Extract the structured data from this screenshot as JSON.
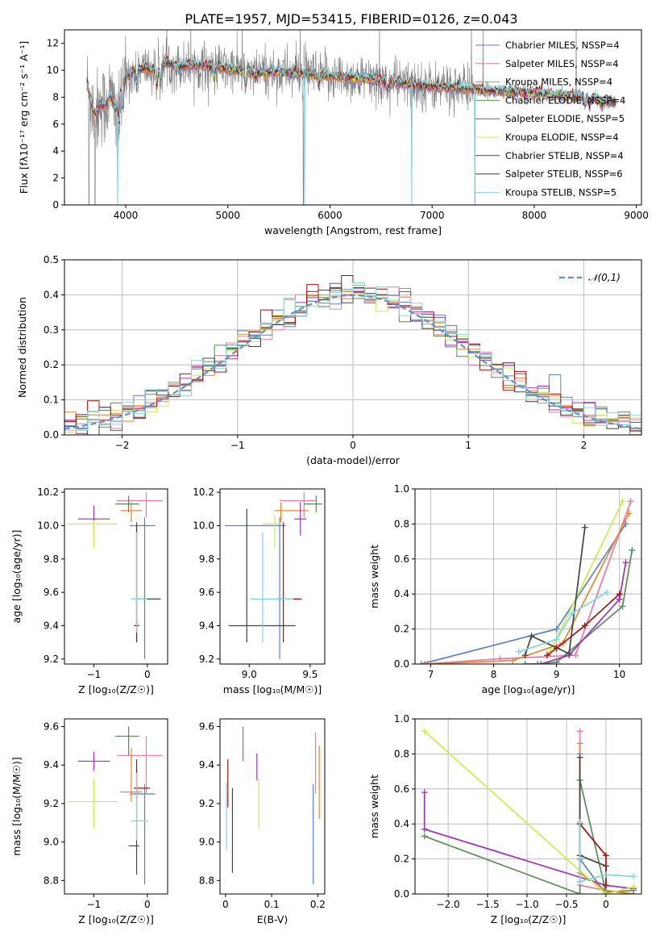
{
  "figure_title": "PLATE=1957, MJD=53415, FIBERID=0126, z=0.043",
  "colors": {
    "Chabrier MILES": "#5b7fd1",
    "Salpeter MILES": "#e87aa6",
    "Kroupa MILES": "#e8862e",
    "Chabrier ELODIE": "#5a8a5a",
    "Salpeter ELODIE": "#a032b8",
    "Kroupa ELODIE": "#d4e84a",
    "Chabrier STELIB": "#444444",
    "Salpeter STELIB": "#aa1111",
    "Kroupa STELIB": "#7fd8de",
    "data": "#808080"
  },
  "chart_data": [
    {
      "id": "spectrum",
      "type": "line",
      "title": "",
      "xlabel": "wavelength [Angstrom, rest frame]",
      "ylabel": "Flux [fλ10⁻¹⁷ erg cm⁻² s⁻¹ A⁻¹]",
      "xlim": [
        3400,
        9050
      ],
      "ylim": [
        0,
        13
      ],
      "xticks": [
        4000,
        5000,
        6000,
        7000,
        8000,
        9000
      ],
      "yticks": [
        0,
        2,
        4,
        6,
        8,
        10,
        12
      ],
      "legend_position": "right",
      "legend": [
        {
          "name": "Chabrier MILES",
          "label": "Chabrier MILES, NSSP=4"
        },
        {
          "name": "Salpeter MILES",
          "label": "Salpeter MILES, NSSP=4"
        },
        {
          "name": "Kroupa MILES",
          "label": "Kroupa MILES, NSSP=4"
        },
        {
          "name": "Chabrier ELODIE",
          "label": "Chabrier ELODIE, NSSP=4"
        },
        {
          "name": "Salpeter ELODIE",
          "label": "Salpeter ELODIE, NSSP=5"
        },
        {
          "name": "Kroupa ELODIE",
          "label": "Kroupa ELODIE, NSSP=4"
        },
        {
          "name": "Chabrier STELIB",
          "label": "Chabrier STELIB, NSSP=4"
        },
        {
          "name": "Salpeter STELIB",
          "label": "Salpeter STELIB, NSSP=6"
        },
        {
          "name": "Kroupa STELIB",
          "label": "Kroupa STELIB, NSSP=5"
        }
      ],
      "continuum": [
        [
          3620,
          9.0
        ],
        [
          3700,
          6.5
        ],
        [
          3750,
          7.6
        ],
        [
          3800,
          7.3
        ],
        [
          3850,
          8.2
        ],
        [
          3900,
          7.0
        ],
        [
          3950,
          8.8
        ],
        [
          4000,
          9.5
        ],
        [
          4100,
          10.0
        ],
        [
          4200,
          10.2
        ],
        [
          4300,
          9.9
        ],
        [
          4400,
          10.6
        ],
        [
          4500,
          10.3
        ],
        [
          4700,
          10.4
        ],
        [
          4900,
          10.2
        ],
        [
          5100,
          10.0
        ],
        [
          5300,
          9.8
        ],
        [
          5500,
          9.9
        ],
        [
          5800,
          9.7
        ],
        [
          6100,
          9.5
        ],
        [
          6400,
          9.3
        ],
        [
          6700,
          9.0
        ],
        [
          7000,
          8.8
        ],
        [
          7400,
          8.6
        ],
        [
          7500,
          8.5
        ],
        [
          7800,
          8.4
        ],
        [
          8200,
          8.2
        ],
        [
          8600,
          7.9
        ],
        [
          8800,
          7.6
        ]
      ],
      "data_dropouts": [
        3640,
        3700,
        3920,
        5740,
        6800,
        7420
      ],
      "model_dropouts": [
        3920,
        5750,
        6800,
        7420
      ]
    },
    {
      "id": "residuals",
      "type": "histogram",
      "xlabel": "(data-model)/error",
      "ylabel": "Normed distribution",
      "xlim": [
        -2.5,
        2.5
      ],
      "ylim": [
        0,
        0.5
      ],
      "xticks": [
        -2,
        -1,
        0,
        1,
        2
      ],
      "yticks": [
        0.0,
        0.1,
        0.2,
        0.3,
        0.4,
        0.5
      ],
      "grid": true,
      "legend_position": "top-right",
      "reference_label": "𝒩(0,1)",
      "bin_width": 0.1
    },
    {
      "id": "age_vs_Z",
      "type": "errorbar",
      "xlabel": "Z [log₁₀(Z/Z☉)]",
      "ylabel": "age  [log₁₀(age/yr)]",
      "xlim": [
        -1.55,
        0.38
      ],
      "ylim": [
        9.17,
        10.22
      ],
      "xticks": [
        -1,
        0
      ],
      "yticks": [
        9.2,
        9.4,
        9.6,
        9.8,
        10.0,
        10.2
      ],
      "points": [
        {
          "name": "Chabrier MILES",
          "x": -0.05,
          "y": 10.0,
          "xerr": [
            0.28,
            0.2
          ],
          "yerr": [
            0.8,
            0.05
          ]
        },
        {
          "name": "Salpeter MILES",
          "x": -0.02,
          "y": 10.15,
          "xerr": [
            0.55,
            0.3
          ],
          "yerr": [
            0.1,
            0.05
          ]
        },
        {
          "name": "Kroupa MILES",
          "x": -0.3,
          "y": 10.09,
          "xerr": [
            0.2,
            0.2
          ],
          "yerr": [
            0.07,
            0.05
          ]
        },
        {
          "name": "Chabrier ELODIE",
          "x": -0.35,
          "y": 10.13,
          "xerr": [
            0.25,
            0.2
          ],
          "yerr": [
            0.05,
            0.05
          ]
        },
        {
          "name": "Salpeter ELODIE",
          "x": -1.0,
          "y": 10.04,
          "xerr": [
            0.3,
            0.3
          ],
          "yerr": [
            0.1,
            0.08
          ]
        },
        {
          "name": "Kroupa ELODIE",
          "x": -1.0,
          "y": 10.01,
          "xerr": [
            0.5,
            0.45
          ],
          "yerr": [
            0.15,
            0.02
          ]
        },
        {
          "name": "Chabrier STELIB",
          "x": -0.2,
          "y": 9.56,
          "xerr": [
            0.05,
            0.45
          ],
          "yerr": [
            0.26,
            0.46
          ]
        },
        {
          "name": "Salpeter STELIB",
          "x": -0.2,
          "y": 9.4,
          "xerr": [
            0.05,
            0.05
          ],
          "yerr": [
            0.1,
            0.6
          ]
        },
        {
          "name": "Kroupa STELIB",
          "x": -0.2,
          "y": 9.56,
          "xerr": [
            0.1,
            0.2
          ],
          "yerr": [
            0.2,
            0.4
          ]
        }
      ]
    },
    {
      "id": "age_vs_mass",
      "type": "errorbar",
      "xlabel": "mass [log₁₀(M/M☉)]",
      "ylabel": "",
      "xlim": [
        8.76,
        9.62
      ],
      "ylim": [
        9.17,
        10.22
      ],
      "xticks": [
        9.0,
        9.5
      ],
      "yticks": [
        9.2,
        9.4,
        9.6,
        9.8,
        10.0,
        10.2
      ],
      "points": [
        {
          "name": "Chabrier MILES",
          "x": 9.25,
          "y": 10.0,
          "xerr": [
            0.45,
            0.05
          ],
          "yerr": [
            0.8,
            0.05
          ]
        },
        {
          "name": "Salpeter MILES",
          "x": 9.45,
          "y": 10.15,
          "xerr": [
            0.2,
            0.1
          ],
          "yerr": [
            0.1,
            0.05
          ]
        },
        {
          "name": "Kroupa MILES",
          "x": 9.26,
          "y": 10.09,
          "xerr": [
            0.05,
            0.23
          ],
          "yerr": [
            0.07,
            0.05
          ]
        },
        {
          "name": "Chabrier ELODIE",
          "x": 9.55,
          "y": 10.13,
          "xerr": [
            0.1,
            0.05
          ],
          "yerr": [
            0.05,
            0.05
          ]
        },
        {
          "name": "Salpeter ELODIE",
          "x": 9.42,
          "y": 10.04,
          "xerr": [
            0.05,
            0.05
          ],
          "yerr": [
            0.1,
            0.1
          ]
        },
        {
          "name": "Kroupa ELODIE",
          "x": 9.21,
          "y": 10.01,
          "xerr": [
            0.1,
            0.05
          ],
          "yerr": [
            0.15,
            0.05
          ]
        },
        {
          "name": "Chabrier STELIB",
          "x": 8.98,
          "y": 9.4,
          "xerr": [
            0.15,
            0.4
          ],
          "yerr": [
            0.1,
            0.7
          ]
        },
        {
          "name": "Salpeter STELIB",
          "x": 9.28,
          "y": 9.56,
          "xerr": [
            0.05,
            0.15
          ],
          "yerr": [
            0.26,
            0.46
          ]
        },
        {
          "name": "Kroupa STELIB",
          "x": 9.11,
          "y": 9.56,
          "xerr": [
            0.1,
            0.25
          ],
          "yerr": [
            0.26,
            0.4
          ]
        }
      ]
    },
    {
      "id": "massweight_vs_age",
      "type": "line",
      "xlabel": "age  [log₁₀(age/yr)]",
      "ylabel": "mass weight",
      "xlim": [
        6.75,
        10.35
      ],
      "ylim": [
        0,
        1.0
      ],
      "xticks": [
        7,
        8,
        9,
        10
      ],
      "yticks": [
        0.0,
        0.2,
        0.4,
        0.6,
        0.8,
        1.0
      ],
      "grid": true,
      "series": [
        {
          "name": "Chabrier MILES",
          "x": [
            6.85,
            9.0,
            10.1
          ],
          "y": [
            0.0,
            0.2,
            0.8
          ]
        },
        {
          "name": "Salpeter MILES",
          "x": [
            6.9,
            8.1,
            9.3,
            10.18
          ],
          "y": [
            0.0,
            0.03,
            0.05,
            0.93
          ]
        },
        {
          "name": "Kroupa MILES",
          "x": [
            6.95,
            8.3,
            9.1,
            10.15
          ],
          "y": [
            0.0,
            0.02,
            0.12,
            0.86
          ]
        },
        {
          "name": "Chabrier ELODIE",
          "x": [
            8.5,
            8.7,
            9.0,
            10.05,
            10.2
          ],
          "y": [
            0.0,
            0.0,
            0.01,
            0.33,
            0.65
          ]
        },
        {
          "name": "Salpeter ELODIE",
          "x": [
            8.75,
            9.2,
            10.0,
            10.1
          ],
          "y": [
            0.0,
            0.05,
            0.37,
            0.58
          ]
        },
        {
          "name": "Kroupa ELODIE",
          "x": [
            8.9,
            10.05
          ],
          "y": [
            0.07,
            0.93
          ]
        },
        {
          "name": "Chabrier STELIB",
          "x": [
            8.5,
            8.6,
            9.2,
            9.45
          ],
          "y": [
            0.05,
            0.16,
            0.06,
            0.78
          ]
        },
        {
          "name": "Salpeter STELIB",
          "x": [
            8.85,
            9.0,
            9.45,
            10.0
          ],
          "y": [
            0.05,
            0.09,
            0.22,
            0.4
          ]
        },
        {
          "name": "Kroupa STELIB",
          "x": [
            8.4,
            9.0,
            9.25,
            9.8
          ],
          "y": [
            0.07,
            0.14,
            0.29,
            0.41
          ]
        }
      ]
    },
    {
      "id": "mass_vs_Z",
      "type": "errorbar",
      "xlabel": "Z [log₁₀(Z/Z☉)]",
      "ylabel": "mass [log₁₀(M/M☉)]",
      "xlim": [
        -1.55,
        0.38
      ],
      "ylim": [
        8.73,
        9.64
      ],
      "xticks": [
        -1,
        0
      ],
      "yticks": [
        8.8,
        9.0,
        9.2,
        9.4,
        9.6
      ],
      "points": [
        {
          "name": "Chabrier MILES",
          "x": -0.05,
          "y": 9.25,
          "xerr": [
            0.28,
            0.2
          ],
          "yerr": [
            0.47,
            0.05
          ]
        },
        {
          "name": "Salpeter MILES",
          "x": -0.02,
          "y": 9.45,
          "xerr": [
            0.55,
            0.3
          ],
          "yerr": [
            0.2,
            0.1
          ]
        },
        {
          "name": "Kroupa MILES",
          "x": -0.3,
          "y": 9.26,
          "xerr": [
            0.2,
            0.2
          ],
          "yerr": [
            0.05,
            0.23
          ]
        },
        {
          "name": "Chabrier ELODIE",
          "x": -0.35,
          "y": 9.55,
          "xerr": [
            0.25,
            0.2
          ],
          "yerr": [
            0.1,
            0.05
          ]
        },
        {
          "name": "Salpeter ELODIE",
          "x": -1.0,
          "y": 9.42,
          "xerr": [
            0.3,
            0.3
          ],
          "yerr": [
            0.05,
            0.05
          ]
        },
        {
          "name": "Kroupa ELODIE",
          "x": -1.0,
          "y": 9.21,
          "xerr": [
            0.5,
            0.45
          ],
          "yerr": [
            0.14,
            0.12
          ]
        },
        {
          "name": "Chabrier STELIB",
          "x": -0.2,
          "y": 8.98,
          "xerr": [
            0.15,
            0.05
          ],
          "yerr": [
            0.15,
            0.4
          ]
        },
        {
          "name": "Salpeter STELIB",
          "x": -0.2,
          "y": 9.28,
          "xerr": [
            0.05,
            0.25
          ],
          "yerr": [
            0.05,
            0.15
          ]
        },
        {
          "name": "Kroupa STELIB",
          "x": -0.2,
          "y": 9.11,
          "xerr": [
            0.1,
            0.2
          ],
          "yerr": [
            0.1,
            0.25
          ]
        }
      ]
    },
    {
      "id": "mass_vs_ebv",
      "type": "errorbar",
      "xlabel": "E(B-V)",
      "ylabel": "",
      "xlim": [
        -0.012,
        0.215
      ],
      "ylim": [
        8.73,
        9.64
      ],
      "xticks": [
        0.0,
        0.1,
        0.2
      ],
      "yticks": [
        8.8,
        9.0,
        9.2,
        9.4,
        9.6
      ],
      "points": [
        {
          "name": "Chabrier MILES",
          "x": 0.19,
          "y": 9.25,
          "xerr": [
            0,
            0
          ],
          "yerr": [
            0.47,
            0.05
          ]
        },
        {
          "name": "Salpeter MILES",
          "x": 0.195,
          "y": 9.45,
          "xerr": [
            0,
            0
          ],
          "yerr": [
            0.2,
            0.12
          ]
        },
        {
          "name": "Kroupa MILES",
          "x": 0.203,
          "y": 9.26,
          "xerr": [
            0,
            0
          ],
          "yerr": [
            0.14,
            0.24
          ]
        },
        {
          "name": "Chabrier ELODIE",
          "x": 0.038,
          "y": 9.55,
          "xerr": [
            0,
            0
          ],
          "yerr": [
            0.13,
            0.05
          ]
        },
        {
          "name": "Salpeter ELODIE",
          "x": 0.068,
          "y": 9.42,
          "xerr": [
            0,
            0
          ],
          "yerr": [
            0.1,
            0.04
          ]
        },
        {
          "name": "Kroupa ELODIE",
          "x": 0.072,
          "y": 9.21,
          "xerr": [
            0,
            0
          ],
          "yerr": [
            0.14,
            0.12
          ]
        },
        {
          "name": "Chabrier STELIB",
          "x": 0.015,
          "y": 8.98,
          "xerr": [
            0,
            0
          ],
          "yerr": [
            0.14,
            0.3
          ]
        },
        {
          "name": "Salpeter STELIB",
          "x": 0.005,
          "y": 9.28,
          "xerr": [
            0,
            0
          ],
          "yerr": [
            0.1,
            0.15
          ]
        },
        {
          "name": "Kroupa STELIB",
          "x": 0.002,
          "y": 9.11,
          "xerr": [
            0,
            0
          ],
          "yerr": [
            0.15,
            0.2
          ]
        }
      ]
    },
    {
      "id": "massweight_vs_Z",
      "type": "line",
      "xlabel": "Z [log₁₀(Z/Z☉)]",
      "ylabel": "mass weight",
      "xlim": [
        -2.42,
        0.45
      ],
      "ylim": [
        0,
        1.0
      ],
      "xticks": [
        -2.0,
        -1.5,
        -1.0,
        -0.5,
        0.0
      ],
      "yticks": [
        0.0,
        0.2,
        0.4,
        0.6,
        0.8,
        1.0
      ],
      "grid": true,
      "series": [
        {
          "name": "Chabrier MILES",
          "x": [
            -0.33,
            -0.33,
            0.0
          ],
          "y": [
            0.8,
            0.2,
            0.0
          ]
        },
        {
          "name": "Salpeter MILES",
          "x": [
            -0.33,
            -0.33,
            0.0,
            0.35
          ],
          "y": [
            0.93,
            0.05,
            0.02,
            0.0
          ]
        },
        {
          "name": "Kroupa MILES",
          "x": [
            -0.33,
            -0.33,
            0.0,
            0.35
          ],
          "y": [
            0.86,
            0.12,
            0.02,
            0.0
          ]
        },
        {
          "name": "Chabrier ELODIE",
          "x": [
            -2.3,
            -0.33,
            -0.33,
            0.0,
            0.35
          ],
          "y": [
            0.33,
            0.0,
            0.65,
            0.01,
            0.02
          ]
        },
        {
          "name": "Salpeter ELODIE",
          "x": [
            -2.3,
            -2.3,
            0.0,
            0.35
          ],
          "y": [
            0.58,
            0.37,
            0.05,
            0.03
          ]
        },
        {
          "name": "Kroupa ELODIE",
          "x": [
            -2.3,
            0.0,
            0.35
          ],
          "y": [
            0.93,
            0.0,
            0.04
          ]
        },
        {
          "name": "Chabrier STELIB",
          "x": [
            -0.33,
            -0.33,
            0.0,
            0.0
          ],
          "y": [
            0.78,
            0.22,
            0.16,
            0.05
          ]
        },
        {
          "name": "Salpeter STELIB",
          "x": [
            -0.33,
            0.0,
            0.0
          ],
          "y": [
            0.4,
            0.22,
            0.05
          ]
        },
        {
          "name": "Kroupa STELIB",
          "x": [
            -0.33,
            -0.33,
            0.0,
            0.35
          ],
          "y": [
            0.41,
            0.07,
            0.11,
            0.1
          ]
        }
      ]
    }
  ]
}
